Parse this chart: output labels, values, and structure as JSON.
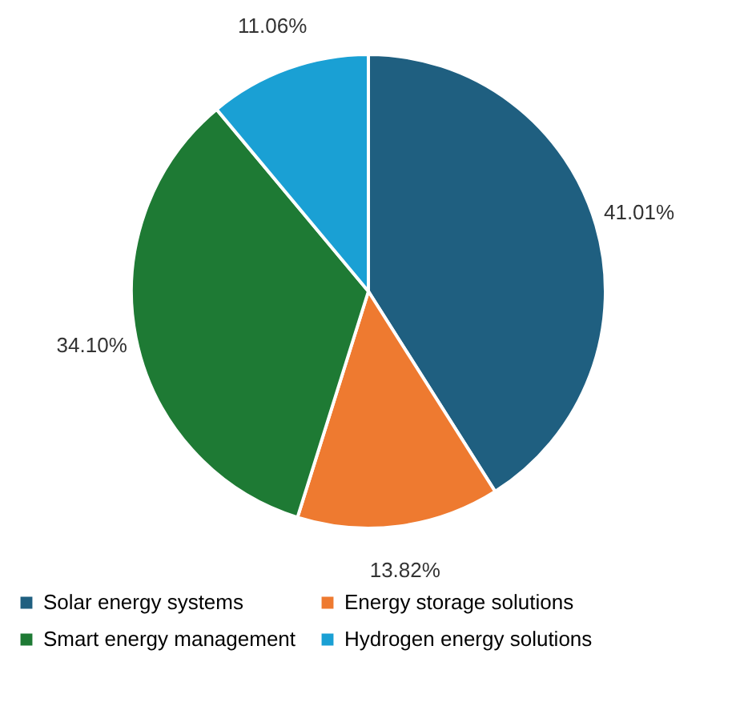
{
  "chart_data": {
    "type": "pie",
    "categories": [
      "Solar energy systems",
      "Energy storage solutions",
      "Smart energy management",
      "Hydrogen energy solutions"
    ],
    "values": [
      41.01,
      13.82,
      34.1,
      11.06
    ],
    "value_labels": [
      "41.01%",
      "13.82%",
      "34.10%",
      "11.06%"
    ],
    "colors": [
      "#1f5f80",
      "#ee7a30",
      "#1e7a34",
      "#1aa0d4"
    ],
    "legend": "bottom"
  }
}
